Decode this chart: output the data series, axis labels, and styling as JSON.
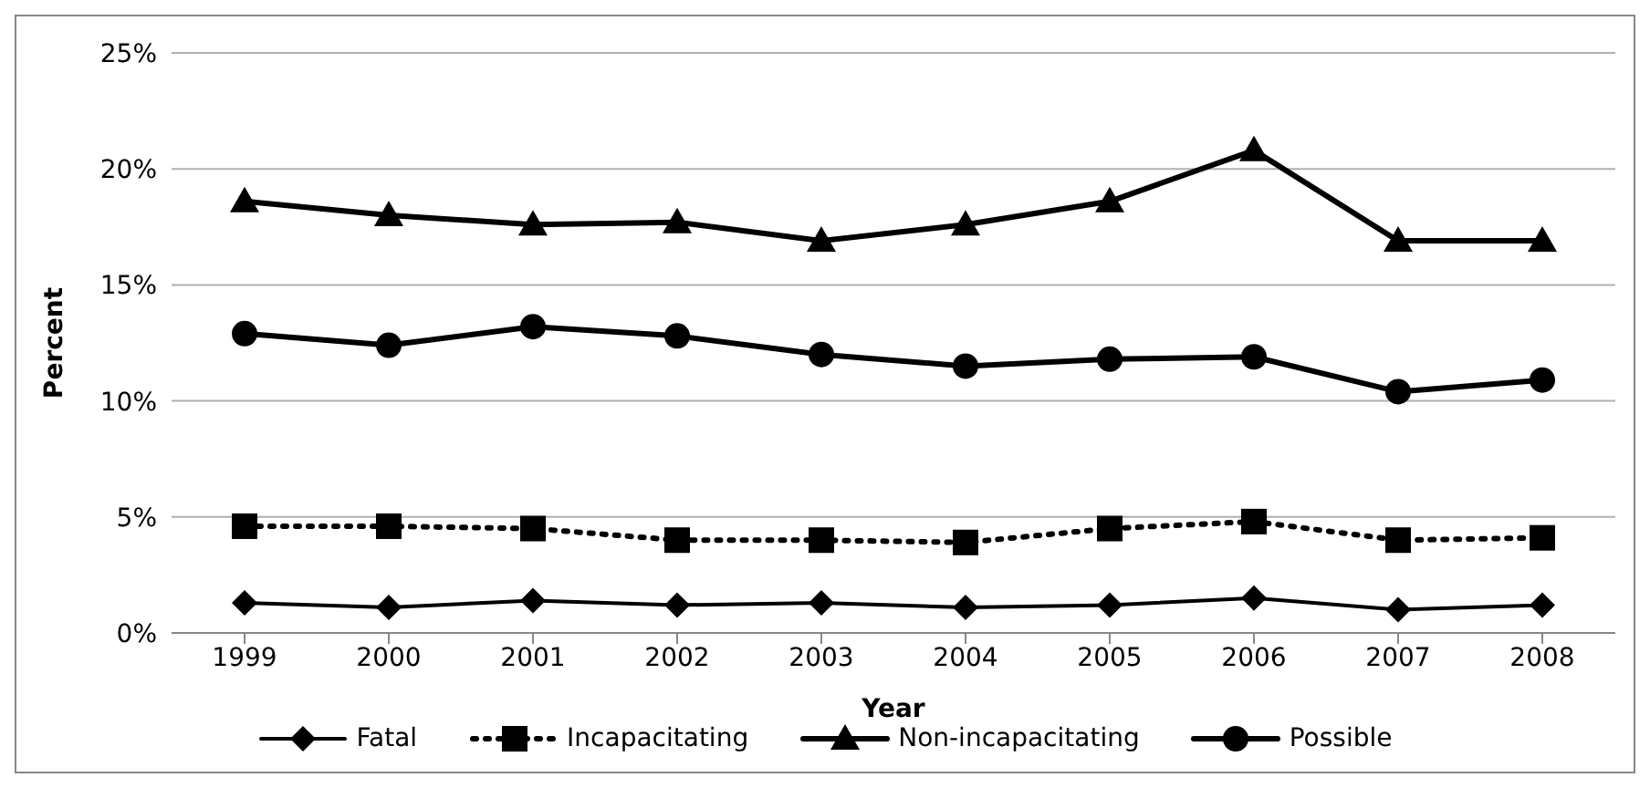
{
  "chart_data": {
    "type": "line",
    "xlabel": "Year",
    "ylabel": "Percent",
    "categories": [
      "1999",
      "2000",
      "2001",
      "2002",
      "2003",
      "2004",
      "2005",
      "2006",
      "2007",
      "2008"
    ],
    "series": [
      {
        "name": "Fatal",
        "color": "#000000",
        "marker": "diamond",
        "line_style": "solid",
        "values": [
          1.3,
          1.1,
          1.4,
          1.2,
          1.3,
          1.1,
          1.2,
          1.5,
          1.0,
          1.2
        ]
      },
      {
        "name": "Incapacitating",
        "color": "#000000",
        "marker": "square",
        "line_style": "dotted",
        "values": [
          4.6,
          4.6,
          4.5,
          4.0,
          4.0,
          3.9,
          4.5,
          4.8,
          4.0,
          4.1
        ]
      },
      {
        "name": "Non-incapacitating",
        "color": "#000000",
        "marker": "triangle",
        "line_style": "solid",
        "values": [
          18.6,
          18.0,
          17.6,
          17.7,
          16.9,
          17.6,
          18.6,
          20.8,
          16.9,
          16.9
        ]
      },
      {
        "name": "Possible",
        "color": "#000000",
        "marker": "circle",
        "line_style": "solid",
        "values": [
          12.9,
          12.4,
          13.2,
          12.8,
          12.0,
          11.5,
          11.8,
          11.9,
          10.4,
          10.9
        ]
      }
    ],
    "ylim": [
      0,
      25
    ],
    "yticks": [
      {
        "value": 0,
        "label": "0%"
      },
      {
        "value": 5,
        "label": "5%"
      },
      {
        "value": 10,
        "label": "10%"
      },
      {
        "value": 15,
        "label": "15%"
      },
      {
        "value": 20,
        "label": "20%"
      },
      {
        "value": 25,
        "label": "25%"
      }
    ],
    "grid": "y",
    "legend": "bottom"
  }
}
